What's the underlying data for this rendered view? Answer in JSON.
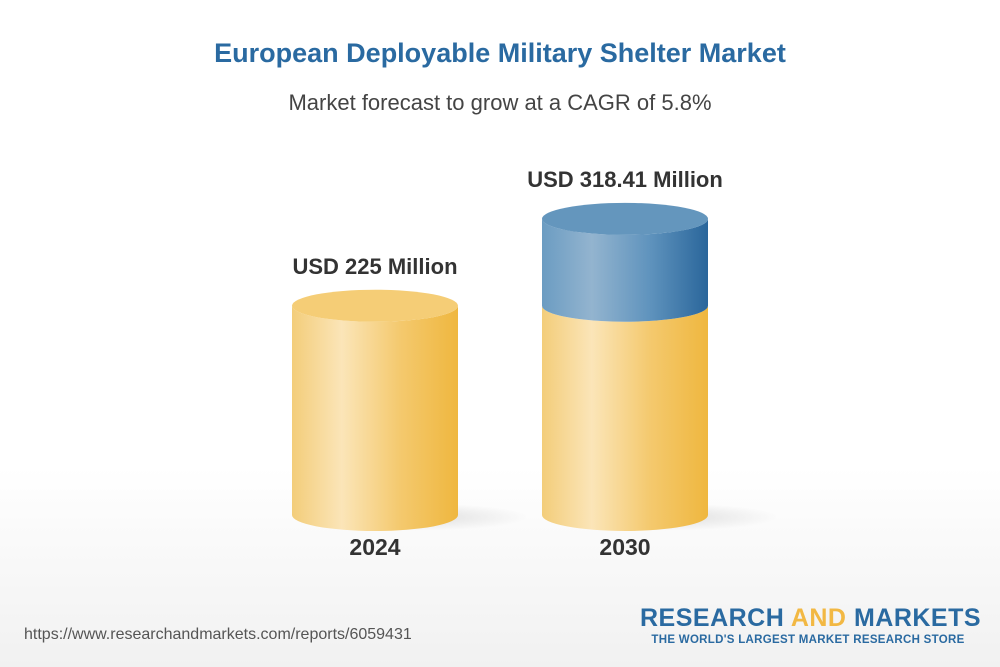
{
  "title": "European Deployable Military Shelter Market",
  "subtitle": "Market forecast to grow at a CAGR of 5.8%",
  "chart_data": {
    "type": "bar",
    "style": "3d-cylinder",
    "categories": [
      "2024",
      "2030"
    ],
    "values": [
      225,
      318.41
    ],
    "data_labels": [
      "USD 225 Million",
      "USD 318.41 Million"
    ],
    "unit": "USD Million",
    "cagr": "5.8%",
    "colors": {
      "base": "#f2c35a",
      "growth": "#4a82b0"
    }
  },
  "footer": {
    "url": "https://www.researchandmarkets.com/reports/6059431",
    "logo_part1": "RESEARCH ",
    "logo_part2": "AND",
    "logo_part3": " MARKETS",
    "tagline": "THE WORLD'S LARGEST MARKET RESEARCH STORE"
  }
}
